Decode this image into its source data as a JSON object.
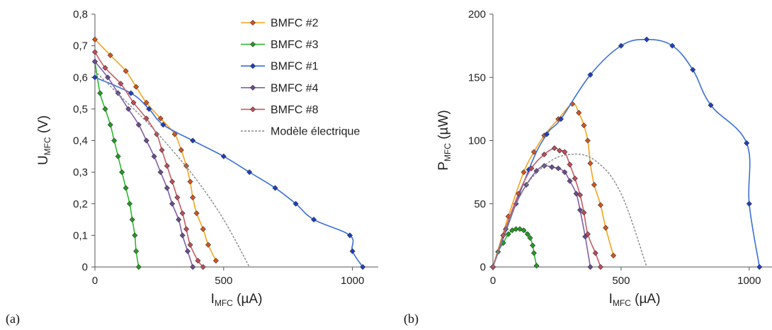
{
  "chart_data": [
    {
      "type": "line",
      "panel_label": "(a)",
      "ylabel": {
        "main": "U",
        "sub": "MFC",
        "unit": " (V)"
      },
      "xlabel": {
        "main": "I",
        "sub": "MFC",
        "unit": " (µA)"
      },
      "xlim": [
        0,
        1100
      ],
      "ylim": [
        0,
        0.8
      ],
      "xticks": [
        0,
        500,
        1000
      ],
      "xtick_labels": [
        "0",
        "500",
        "1000"
      ],
      "yticks": [
        0,
        0.1,
        0.2,
        0.3,
        0.4,
        0.5,
        0.6,
        0.7,
        0.8
      ],
      "ytick_labels": [
        "0",
        "0,1",
        "0,2",
        "0,3",
        "0,4",
        "0,5",
        "0,6",
        "0,7",
        "0,8"
      ],
      "legend_position": "top-right",
      "series": [
        {
          "name": "BMFC #2",
          "color": "#f7a21b",
          "marker_color": "#d8541c",
          "points": [
            [
              0,
              0.72
            ],
            [
              60,
              0.67
            ],
            [
              120,
              0.62
            ],
            [
              160,
              0.57
            ],
            [
              200,
              0.52
            ],
            [
              255,
              0.47
            ],
            [
              310,
              0.42
            ],
            [
              335,
              0.37
            ],
            [
              355,
              0.32
            ],
            [
              370,
              0.27
            ],
            [
              380,
              0.22
            ],
            [
              395,
              0.17
            ],
            [
              420,
              0.12
            ],
            [
              440,
              0.07
            ],
            [
              470,
              0.02
            ]
          ]
        },
        {
          "name": "BMFC #3",
          "color": "#2eb82e",
          "marker_color": "#1e9e1e",
          "points": [
            [
              0,
              0.65
            ],
            [
              20,
              0.55
            ],
            [
              40,
              0.5
            ],
            [
              60,
              0.45
            ],
            [
              75,
              0.4
            ],
            [
              90,
              0.35
            ],
            [
              105,
              0.3
            ],
            [
              120,
              0.25
            ],
            [
              135,
              0.2
            ],
            [
              145,
              0.15
            ],
            [
              155,
              0.1
            ],
            [
              160,
              0.05
            ],
            [
              170,
              0.0
            ]
          ]
        },
        {
          "name": "BMFC #1",
          "color": "#3b6fd8",
          "marker_color": "#1d3fc8",
          "points": [
            [
              0,
              0.6
            ],
            [
              140,
              0.55
            ],
            [
              210,
              0.5
            ],
            [
              265,
              0.45
            ],
            [
              380,
              0.4
            ],
            [
              500,
              0.35
            ],
            [
              600,
              0.3
            ],
            [
              700,
              0.25
            ],
            [
              780,
              0.2
            ],
            [
              850,
              0.15
            ],
            [
              990,
              0.1
            ],
            [
              1000,
              0.05
            ],
            [
              1040,
              0.0
            ]
          ]
        },
        {
          "name": "BMFC #4",
          "color": "#8060a8",
          "marker_color": "#6a4c96",
          "points": [
            [
              0,
              0.65
            ],
            [
              50,
              0.6
            ],
            [
              90,
              0.55
            ],
            [
              130,
              0.5
            ],
            [
              170,
              0.45
            ],
            [
              200,
              0.4
            ],
            [
              230,
              0.35
            ],
            [
              255,
              0.3
            ],
            [
              280,
              0.25
            ],
            [
              300,
              0.2
            ],
            [
              325,
              0.15
            ],
            [
              340,
              0.1
            ],
            [
              360,
              0.05
            ],
            [
              380,
              0.0
            ]
          ]
        },
        {
          "name": "BMFC #8",
          "color": "#c45c66",
          "marker_color": "#c04d5a",
          "points": [
            [
              0,
              0.68
            ],
            [
              40,
              0.63
            ],
            [
              100,
              0.58
            ],
            [
              150,
              0.52
            ],
            [
              200,
              0.47
            ],
            [
              240,
              0.42
            ],
            [
              260,
              0.37
            ],
            [
              280,
              0.32
            ],
            [
              300,
              0.27
            ],
            [
              320,
              0.22
            ],
            [
              340,
              0.17
            ],
            [
              355,
              0.12
            ],
            [
              370,
              0.07
            ],
            [
              400,
              0.02
            ],
            [
              420,
              0.0
            ]
          ]
        },
        {
          "name": "Modèle électrique",
          "color": "#888888",
          "dashed": true,
          "marker_color": null,
          "points": [
            [
              0,
              0.62
            ],
            [
              100,
              0.54
            ],
            [
              200,
              0.46
            ],
            [
              300,
              0.37
            ],
            [
              400,
              0.27
            ],
            [
              500,
              0.15
            ],
            [
              600,
              0.0
            ]
          ]
        }
      ]
    },
    {
      "type": "line",
      "panel_label": "(b)",
      "ylabel": {
        "main": "P",
        "sub": "MFC",
        "unit": " (µW)"
      },
      "xlabel": {
        "main": "I",
        "sub": "MFC",
        "unit": " (µA)"
      },
      "xlim": [
        0,
        1100
      ],
      "ylim": [
        0,
        200
      ],
      "xticks": [
        0,
        500,
        1000
      ],
      "xtick_labels": [
        "0",
        "500",
        "1000"
      ],
      "yticks": [
        0,
        50,
        100,
        150,
        200
      ],
      "ytick_labels": [
        "0",
        "50",
        "100",
        "150",
        "200"
      ],
      "series": [
        {
          "name": "BMFC #2",
          "color": "#f7a21b",
          "marker_color": "#d8541c",
          "points": [
            [
              0,
              0
            ],
            [
              60,
              40
            ],
            [
              120,
              75
            ],
            [
              160,
              91
            ],
            [
              200,
              104
            ],
            [
              255,
              117
            ],
            [
              310,
              129
            ],
            [
              335,
              122
            ],
            [
              355,
              112
            ],
            [
              370,
              100
            ],
            [
              380,
              82
            ],
            [
              395,
              65
            ],
            [
              420,
              49
            ],
            [
              440,
              31
            ],
            [
              470,
              9
            ]
          ]
        },
        {
          "name": "BMFC #3",
          "color": "#2eb82e",
          "marker_color": "#1e9e1e",
          "points": [
            [
              0,
              0
            ],
            [
              20,
              12
            ],
            [
              40,
              19
            ],
            [
              60,
              26
            ],
            [
              75,
              29
            ],
            [
              90,
              30
            ],
            [
              105,
              30
            ],
            [
              120,
              29
            ],
            [
              135,
              26
            ],
            [
              145,
              23
            ],
            [
              155,
              17
            ],
            [
              160,
              11
            ],
            [
              170,
              1
            ]
          ]
        },
        {
          "name": "BMFC #1",
          "color": "#3b6fd8",
          "marker_color": "#1d3fc8",
          "points": [
            [
              0,
              0
            ],
            [
              140,
              77
            ],
            [
              210,
              105
            ],
            [
              265,
              117
            ],
            [
              380,
              152
            ],
            [
              500,
              175
            ],
            [
              600,
              180
            ],
            [
              700,
              175
            ],
            [
              780,
              156
            ],
            [
              850,
              128
            ],
            [
              990,
              98
            ],
            [
              1000,
              50
            ],
            [
              1040,
              0
            ]
          ]
        },
        {
          "name": "BMFC #4",
          "color": "#8060a8",
          "marker_color": "#6a4c96",
          "points": [
            [
              0,
              0
            ],
            [
              50,
              30
            ],
            [
              90,
              50
            ],
            [
              130,
              65
            ],
            [
              170,
              76
            ],
            [
              200,
              80
            ],
            [
              230,
              79
            ],
            [
              255,
              78
            ],
            [
              280,
              75
            ],
            [
              300,
              68
            ],
            [
              325,
              58
            ],
            [
              340,
              45
            ],
            [
              360,
              24
            ],
            [
              380,
              0
            ]
          ]
        },
        {
          "name": "BMFC #8",
          "color": "#c45c66",
          "marker_color": "#c04d5a",
          "points": [
            [
              0,
              0
            ],
            [
              40,
              25
            ],
            [
              100,
              58
            ],
            [
              150,
              78
            ],
            [
              200,
              89
            ],
            [
              240,
              94
            ],
            [
              260,
              92
            ],
            [
              280,
              91
            ],
            [
              300,
              81
            ],
            [
              320,
              70
            ],
            [
              340,
              57
            ],
            [
              355,
              43
            ],
            [
              370,
              26
            ],
            [
              400,
              11
            ],
            [
              420,
              0
            ]
          ]
        },
        {
          "name": "Modèle électrique",
          "color": "#888888",
          "dashed": true,
          "marker_color": null,
          "points": [
            [
              0,
              0
            ],
            [
              100,
              54
            ],
            [
              200,
              80
            ],
            [
              300,
              89
            ],
            [
              400,
              84
            ],
            [
              500,
              58
            ],
            [
              600,
              0
            ]
          ]
        }
      ]
    }
  ]
}
